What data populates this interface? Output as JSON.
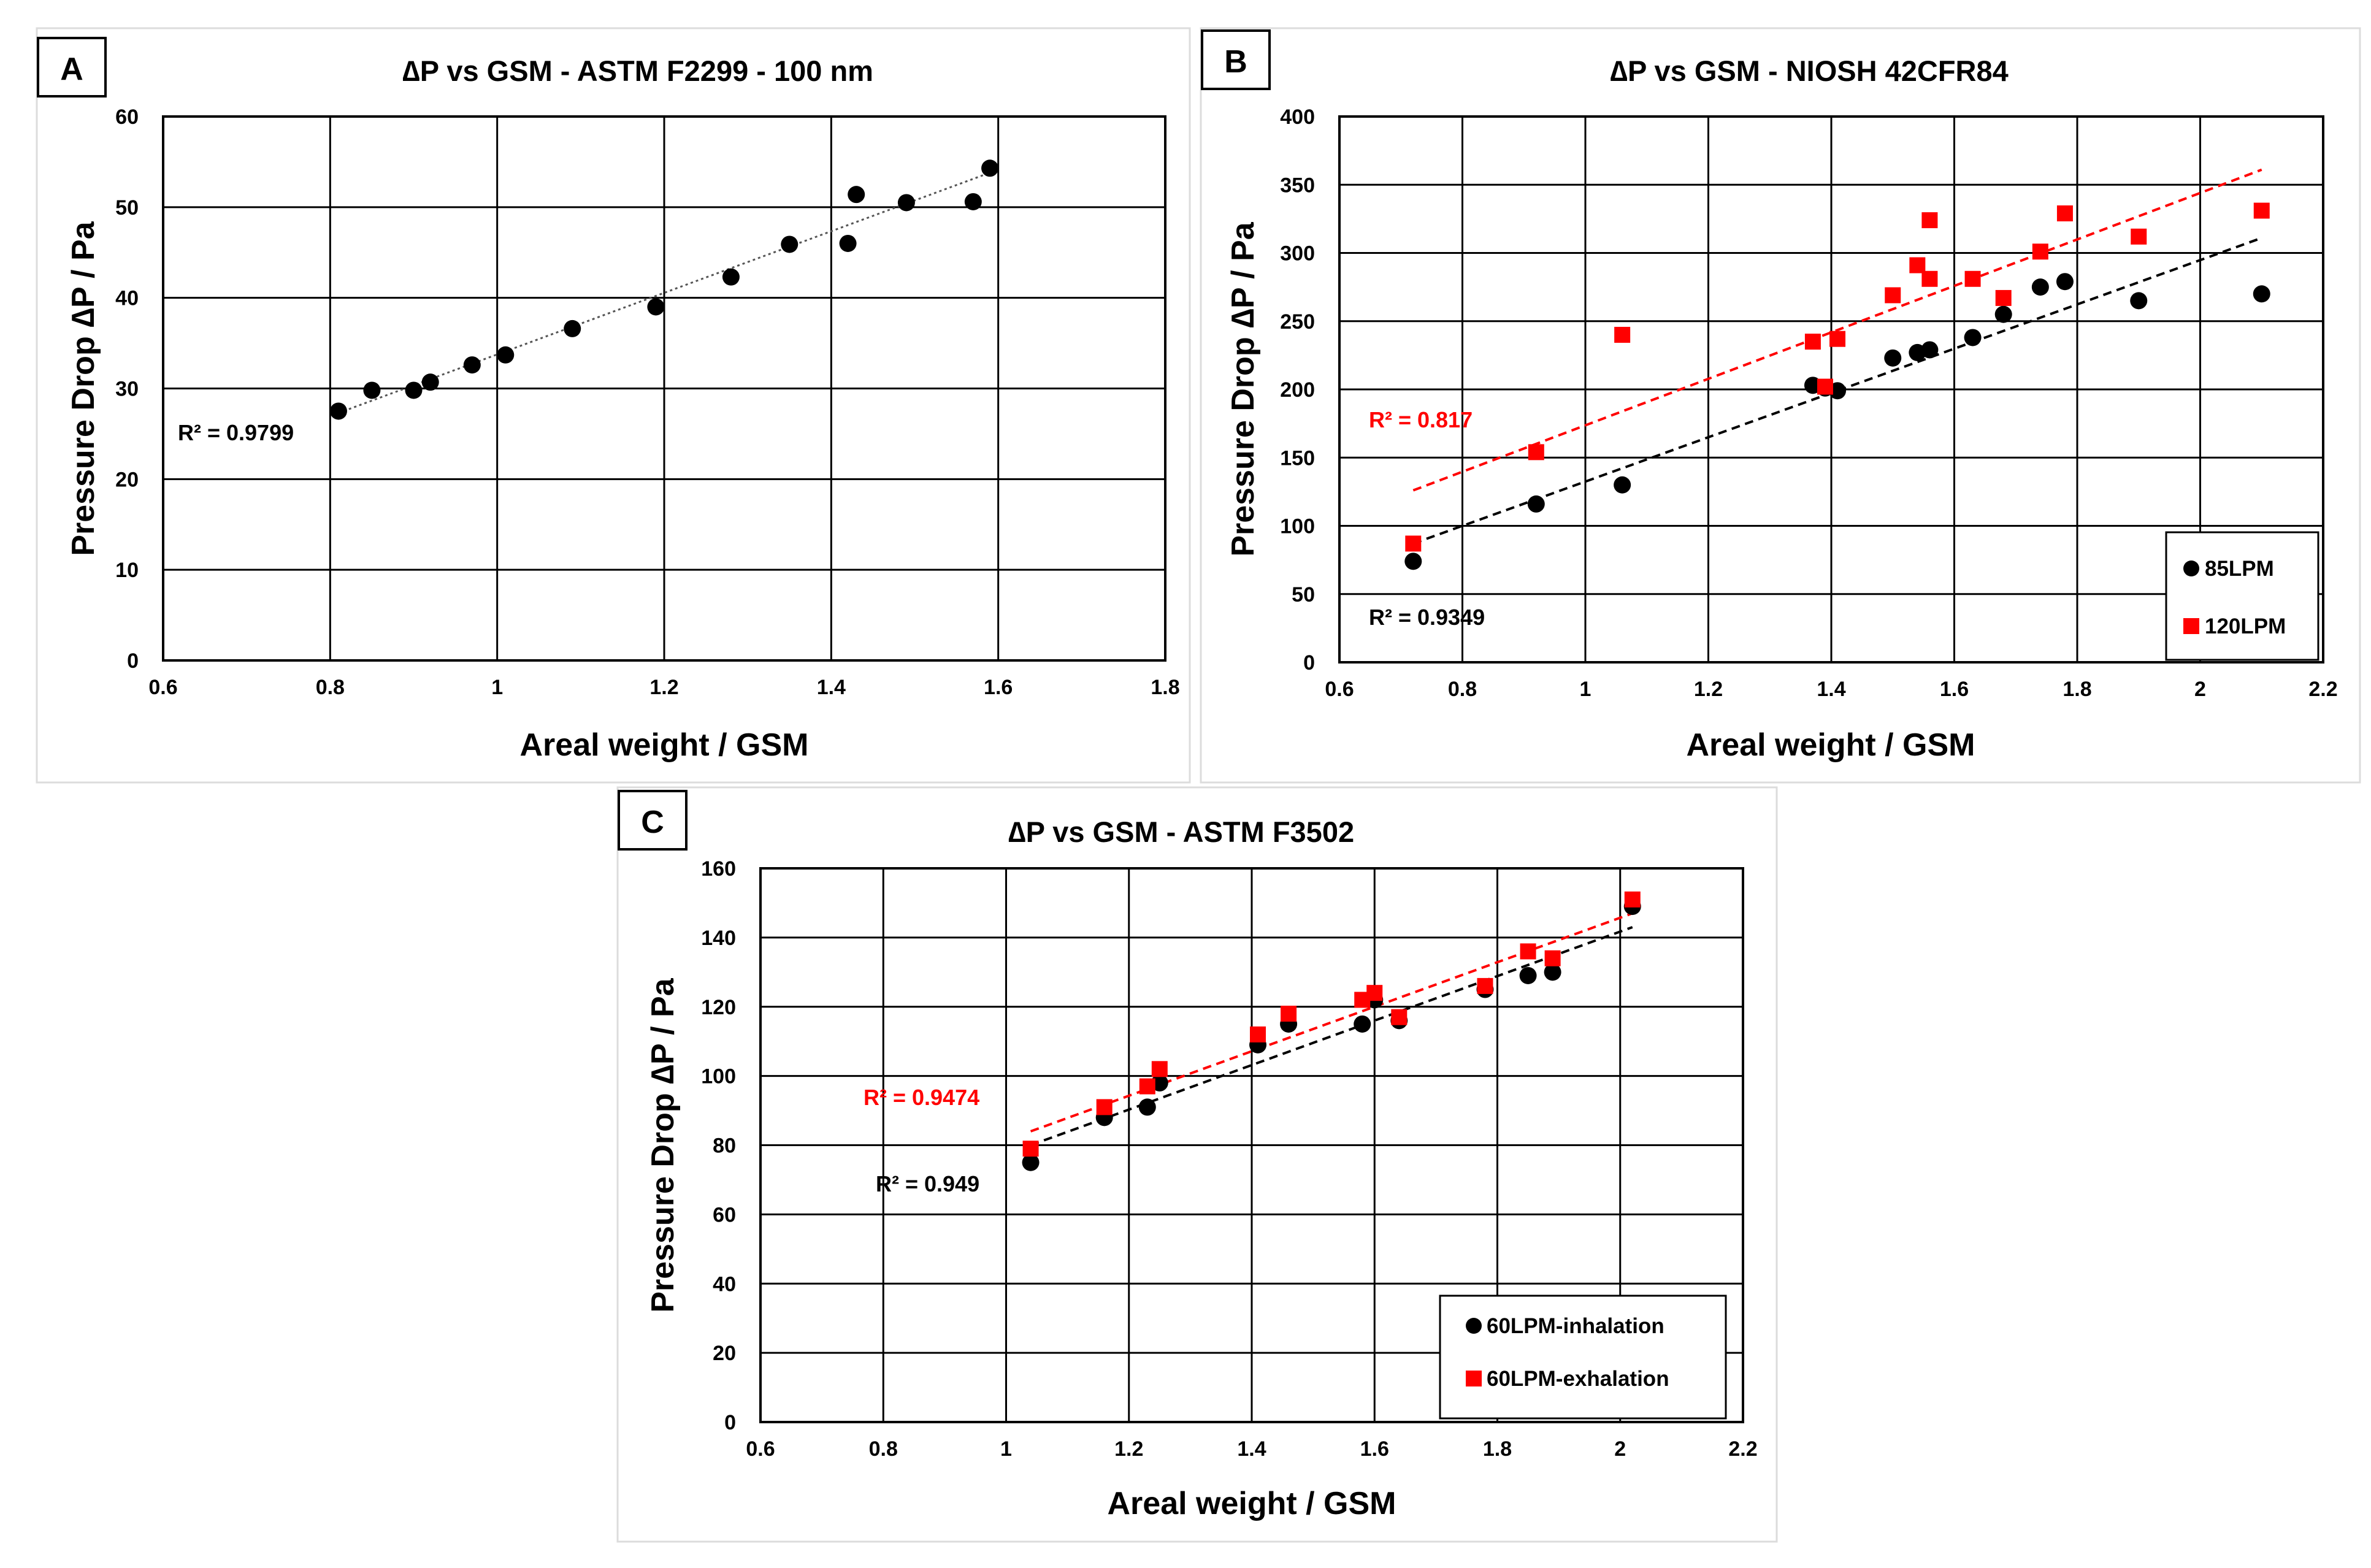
{
  "chart_data": [
    {
      "panel": "A",
      "type": "scatter",
      "title": "∆P vs GSM - ASTM F2299 - 100 nm",
      "xlabel": "Areal weight / GSM",
      "ylabel": "Pressure Drop ∆P / Pa",
      "xlim": [
        0.6,
        1.8
      ],
      "ylim": [
        0,
        60
      ],
      "xticks": [
        0.6,
        0.8,
        1,
        1.2,
        1.4,
        1.6,
        1.8
      ],
      "yticks": [
        0,
        10,
        20,
        30,
        40,
        50,
        60
      ],
      "xtick_labels": [
        "0.6",
        "0.8",
        "1",
        "1.2",
        "1.4",
        "1.6",
        "1.8"
      ],
      "ytick_labels": [
        "0",
        "10",
        "20",
        "30",
        "40",
        "50",
        "60"
      ],
      "grid": true,
      "legend": null,
      "series": [
        {
          "name": "ASTM F2299",
          "marker": "circle",
          "color": "#000000",
          "x": [
            0.81,
            0.85,
            0.9,
            0.92,
            0.97,
            1.01,
            1.09,
            1.19,
            1.28,
            1.35,
            1.42,
            1.43,
            1.49,
            1.57,
            1.59
          ],
          "y": [
            27.5,
            29.8,
            29.8,
            30.7,
            32.6,
            33.7,
            36.6,
            39.0,
            42.3,
            45.9,
            46.0,
            51.4,
            50.5,
            50.6,
            54.3
          ],
          "trend": {
            "x0": 0.81,
            "y0": 27.3,
            "x1": 1.59,
            "y1": 53.8,
            "style": "dotted",
            "color": "#555555"
          },
          "r2_label": "R² = 0.9799",
          "r2_color": "#000000"
        }
      ]
    },
    {
      "panel": "B",
      "type": "scatter",
      "title": "∆P vs GSM - NIOSH 42CFR84",
      "xlabel": "Areal weight / GSM",
      "ylabel": "Pressure Drop ∆P / Pa",
      "xlim": [
        0.6,
        2.2
      ],
      "ylim": [
        0,
        400
      ],
      "xticks": [
        0.6,
        0.8,
        1,
        1.2,
        1.4,
        1.6,
        1.8,
        2,
        2.2
      ],
      "yticks": [
        0,
        50,
        100,
        150,
        200,
        250,
        300,
        350,
        400
      ],
      "xtick_labels": [
        "0.6",
        "0.8",
        "1",
        "1.2",
        "1.4",
        "1.6",
        "1.8",
        "2",
        "2.2"
      ],
      "ytick_labels": [
        "0",
        "50",
        "100",
        "150",
        "200",
        "250",
        "300",
        "350",
        "400"
      ],
      "grid": true,
      "legend": "bottom-right",
      "series": [
        {
          "name": "85LPM",
          "marker": "circle",
          "color": "#000000",
          "x": [
            0.72,
            0.92,
            1.06,
            1.37,
            1.39,
            1.41,
            1.5,
            1.54,
            1.56,
            1.63,
            1.68,
            1.74,
            1.78,
            1.9,
            2.1
          ],
          "y": [
            74,
            116,
            130,
            203,
            201,
            199,
            223,
            227,
            229,
            238,
            255,
            275,
            279,
            265,
            270
          ],
          "trend": {
            "x0": 0.72,
            "y0": 87,
            "x1": 2.1,
            "y1": 311,
            "style": "dashed",
            "color": "#000000"
          },
          "r2_label": "R² = 0.9349",
          "r2_color": "#000000"
        },
        {
          "name": "120LPM",
          "marker": "square",
          "color": "#ff0000",
          "x": [
            0.72,
            0.92,
            1.06,
            1.37,
            1.39,
            1.41,
            1.5,
            1.54,
            1.56,
            1.56,
            1.63,
            1.68,
            1.74,
            1.78,
            1.9,
            2.1
          ],
          "y": [
            87,
            154,
            240,
            235,
            202,
            237,
            269,
            291,
            324,
            281,
            281,
            267,
            301,
            329,
            312,
            331
          ],
          "trend": {
            "x0": 0.72,
            "y0": 126,
            "x1": 2.1,
            "y1": 361,
            "style": "dashed",
            "color": "#ff0000"
          },
          "r2_label": "R² = 0.817",
          "r2_color": "#ff0000"
        }
      ]
    },
    {
      "panel": "C",
      "type": "scatter",
      "title": "∆P vs GSM - ASTM F3502",
      "xlabel": "Areal weight / GSM",
      "ylabel": "Pressure Drop ∆P / Pa",
      "xlim": [
        0.6,
        2.2
      ],
      "ylim": [
        0,
        160
      ],
      "xticks": [
        0.6,
        0.8,
        1,
        1.2,
        1.4,
        1.6,
        1.8,
        2,
        2.2
      ],
      "yticks": [
        0,
        20,
        40,
        60,
        80,
        100,
        120,
        140,
        160
      ],
      "xtick_labels": [
        "0.6",
        "0.8",
        "1",
        "1.2",
        "1.4",
        "1.6",
        "1.8",
        "2",
        "2.2"
      ],
      "ytick_labels": [
        "0",
        "20",
        "40",
        "60",
        "80",
        "100",
        "120",
        "140",
        "160"
      ],
      "grid": true,
      "legend": "bottom-right",
      "series": [
        {
          "name": "60LPM-inhalation",
          "marker": "circle",
          "color": "#000000",
          "x": [
            1.04,
            1.16,
            1.23,
            1.25,
            1.41,
            1.46,
            1.58,
            1.6,
            1.64,
            1.78,
            1.85,
            1.89,
            2.02
          ],
          "y": [
            75,
            88,
            91,
            98,
            109,
            115,
            115,
            122,
            116,
            125,
            129,
            130,
            149
          ],
          "trend": {
            "x0": 1.04,
            "y0": 80,
            "x1": 2.02,
            "y1": 143,
            "style": "dashed",
            "color": "#000000"
          },
          "r2_label": "R² = 0.949",
          "r2_color": "#000000"
        },
        {
          "name": "60LPM-exhalation",
          "marker": "square",
          "color": "#ff0000",
          "x": [
            1.04,
            1.16,
            1.23,
            1.25,
            1.41,
            1.46,
            1.58,
            1.6,
            1.64,
            1.78,
            1.85,
            1.89,
            2.02
          ],
          "y": [
            79,
            91,
            97,
            102,
            112,
            118,
            122,
            124,
            117,
            126,
            136,
            134,
            151
          ],
          "trend": {
            "x0": 1.04,
            "y0": 84,
            "x1": 2.02,
            "y1": 147,
            "style": "dashed",
            "color": "#ff0000"
          },
          "r2_label": "R² = 0.9474",
          "r2_color": "#ff0000"
        }
      ]
    }
  ]
}
